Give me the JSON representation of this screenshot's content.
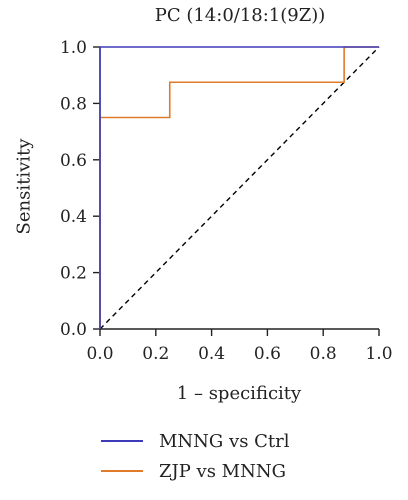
{
  "chart_data": {
    "type": "line",
    "title": "PC (14:0/18:1(9Z))",
    "xlabel": "1 – specificity",
    "ylabel": "Sensitivity",
    "xlim": [
      0,
      1
    ],
    "ylim": [
      0,
      1
    ],
    "x_ticks": [
      "0.0",
      "0.2",
      "0.4",
      "0.6",
      "0.8",
      "1.0"
    ],
    "y_ticks": [
      "0.0",
      "0.2",
      "0.4",
      "0.6",
      "0.8",
      "1.0"
    ],
    "grid": false,
    "legend_position": "bottom-left",
    "series": [
      {
        "name": "MNNG vs Ctrl",
        "color": "#3e3ab8",
        "x": [
          0.0,
          0.0,
          1.0
        ],
        "y": [
          0.0,
          1.0,
          1.0
        ]
      },
      {
        "name": "ZJP vs MNNG",
        "color": "#e07b2a",
        "x": [
          0.0,
          0.0,
          0.25,
          0.25,
          0.875,
          0.875,
          1.0
        ],
        "y": [
          0.0,
          0.75,
          0.75,
          0.875,
          0.875,
          1.0,
          1.0
        ]
      }
    ],
    "reference_line": {
      "x": [
        0,
        1
      ],
      "y": [
        0,
        1
      ],
      "style": "dashed",
      "color": "#000000"
    }
  }
}
